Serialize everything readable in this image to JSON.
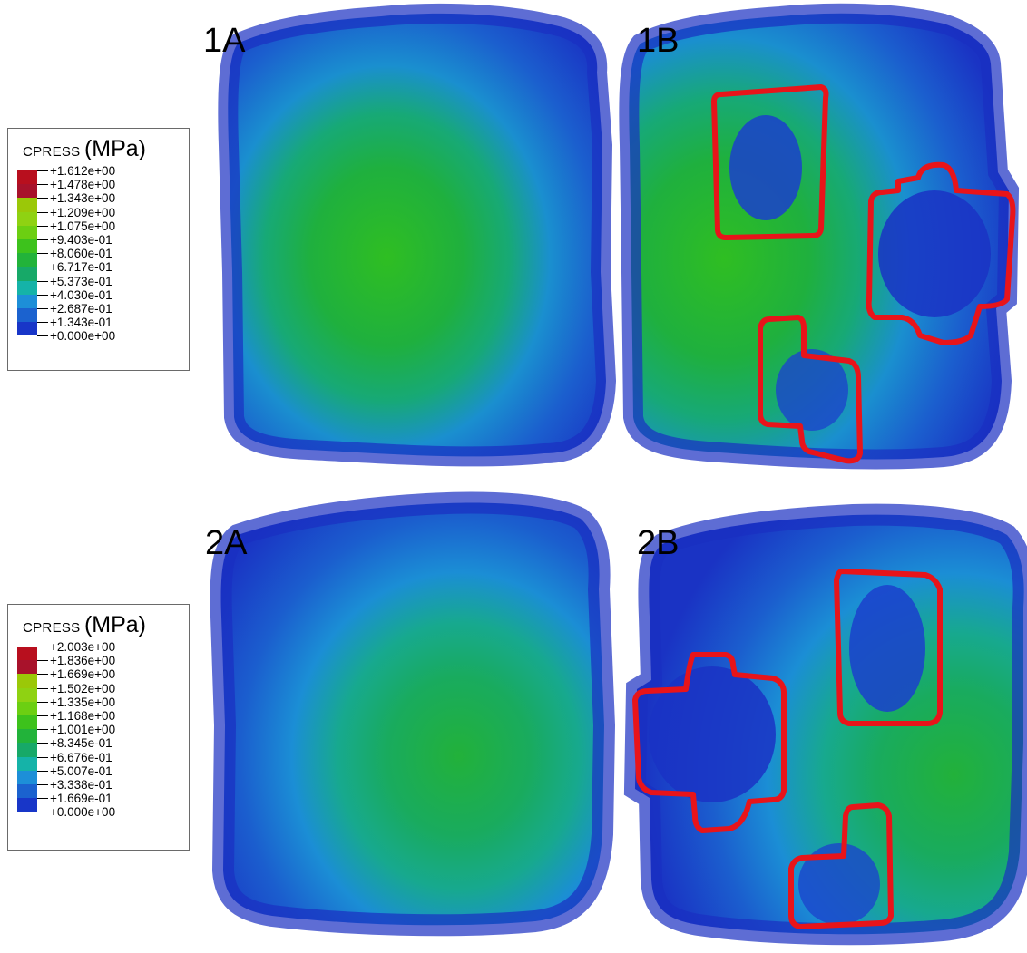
{
  "legend1": {
    "variable": "CPRESS",
    "unit": "(MPa)",
    "values": [
      "+1.612e+00",
      "+1.478e+00",
      "+1.343e+00",
      "+1.209e+00",
      "+1.075e+00",
      "+9.403e-01",
      "+8.060e-01",
      "+6.717e-01",
      "+5.373e-01",
      "+4.030e-01",
      "+2.687e-01",
      "+1.343e-01",
      "+0.000e+00"
    ]
  },
  "legend2": {
    "variable": "CPRESS",
    "unit": "(MPa)",
    "values": [
      "+2.003e+00",
      "+1.836e+00",
      "+1.669e+00",
      "+1.502e+00",
      "+1.335e+00",
      "+1.168e+00",
      "+1.001e+00",
      "+8.345e-01",
      "+6.676e-01",
      "+5.007e-01",
      "+3.338e-01",
      "+1.669e-01",
      "+0.000e+00"
    ]
  },
  "colorbands": [
    "#b80f1e",
    "#a8122b",
    "#9bc808",
    "#8fd212",
    "#6ccf12",
    "#3dc21c",
    "#22b33a",
    "#17a968",
    "#15b3a8",
    "#1d8fd8",
    "#1b62cf",
    "#1836c8"
  ],
  "panels": {
    "p1a": "1A",
    "p1b": "1B",
    "p2a": "2A",
    "p2b": "2B"
  },
  "highlight_color": "#e8141a"
}
